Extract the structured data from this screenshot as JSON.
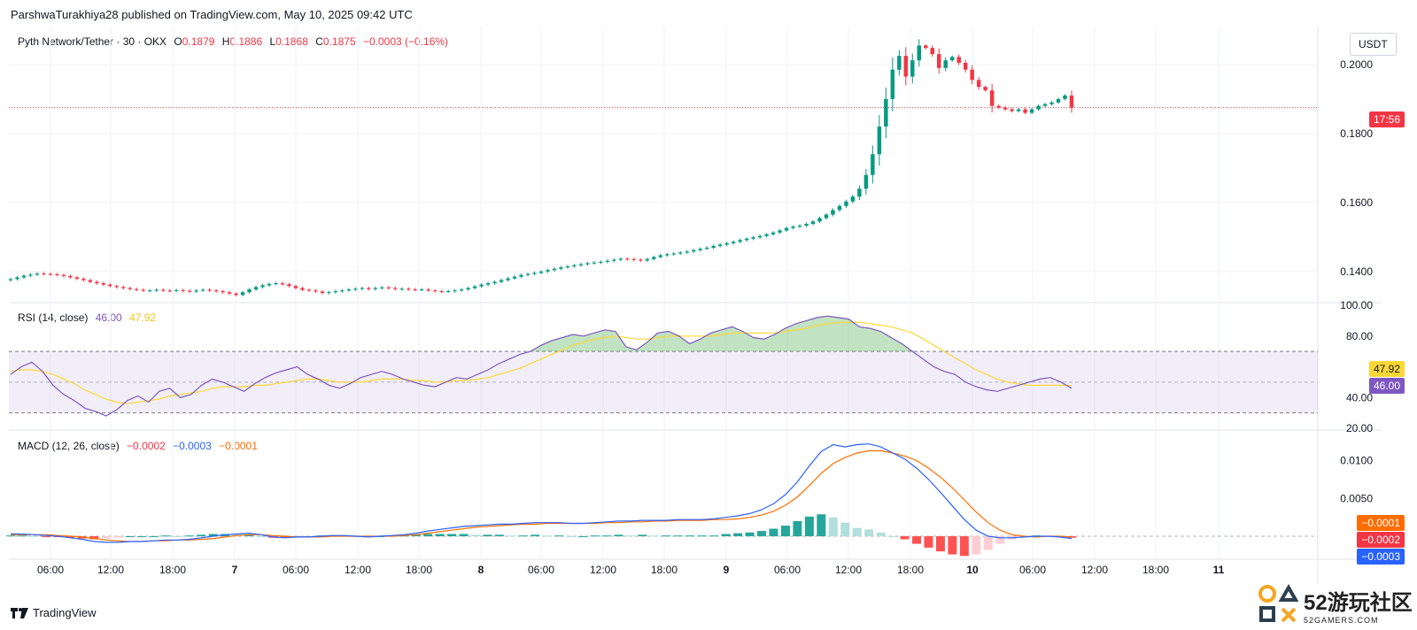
{
  "header": {
    "published_line": "ParshwaTurakhiya28 published on TradingView.com, May 10, 2025 09:42 UTC",
    "currency_button": "USDT"
  },
  "price_legend": {
    "symbol": "Pyth Network/Tether · 30 · OKX",
    "o_label": "O",
    "o_value": "0.1879",
    "h_label": "H",
    "h_value": "0.1886",
    "l_label": "L",
    "l_value": "0.1868",
    "c_label": "C",
    "c_value": "0.1875",
    "change": "−0.0003 (−0.16%)"
  },
  "rsi_legend": {
    "label": "RSI (14, close)",
    "rsi_value": "46.00",
    "ma_value": "47.92"
  },
  "macd_legend": {
    "label": "MACD (12, 26, close)",
    "hist_value": "−0.0002",
    "macd_value": "−0.0003",
    "signal_value": "−0.0001"
  },
  "badges": {
    "countdown": "17:56",
    "rsi_ma": "47.92",
    "rsi": "46.00",
    "macd_signal": "−0.0001",
    "macd_hist": "−0.0002",
    "macd_line": "−0.0003"
  },
  "footer": {
    "brand": "TradingView"
  },
  "watermark": {
    "big": "52游玩社区",
    "small": "52GAMERS.COM"
  },
  "colors": {
    "up": "#089981",
    "down": "#f23645",
    "rsi": "#7e57c2",
    "rsi_ma": "#fdd835",
    "macd": "#2962ff",
    "signal": "#ff6d00",
    "bg_band": "#7e57c2"
  },
  "chart_data": [
    {
      "type": "candlestick",
      "title": "Pyth Network/Tether · 30 · OKX",
      "y_ticks": [
        "0.2000",
        "0.1800",
        "0.1600",
        "0.1400"
      ],
      "ylim": [
        0.1315,
        0.211
      ],
      "x_ticks": [
        "06:00",
        "12:00",
        "18:00",
        "7",
        "06:00",
        "12:00",
        "18:00",
        "8",
        "06:00",
        "12:00",
        "18:00",
        "9",
        "06:00",
        "12:00",
        "18:00",
        "10",
        "06:00",
        "12:00",
        "18:00",
        "11"
      ],
      "last_price": 0.1875,
      "close_series": [
        0.1378,
        0.1383,
        0.1388,
        0.1391,
        0.1394,
        0.1393,
        0.1392,
        0.139,
        0.1387,
        0.1383,
        0.1379,
        0.1375,
        0.137,
        0.1366,
        0.1362,
        0.1358,
        0.1355,
        0.1352,
        0.1349,
        0.1347,
        0.1345,
        0.1345,
        0.1347,
        0.1345,
        0.1344,
        0.1346,
        0.1344,
        0.1342,
        0.1345,
        0.1347,
        0.1345,
        0.1343,
        0.134,
        0.1336,
        0.1332,
        0.134,
        0.1348,
        0.1355,
        0.136,
        0.1364,
        0.1366,
        0.1363,
        0.1358,
        0.1352,
        0.1347,
        0.1345,
        0.1342,
        0.1338,
        0.134,
        0.1343,
        0.1345,
        0.1348,
        0.135,
        0.1352,
        0.1349,
        0.1352,
        0.1354,
        0.1352,
        0.1349,
        0.135,
        0.1348,
        0.1347,
        0.1348,
        0.1345,
        0.1343,
        0.1342,
        0.1343,
        0.1345,
        0.1348,
        0.1352,
        0.1357,
        0.1362,
        0.1366,
        0.137,
        0.1375,
        0.138,
        0.1385,
        0.139,
        0.1393,
        0.1396,
        0.14,
        0.1404,
        0.1408,
        0.1412,
        0.1415,
        0.1418,
        0.1421,
        0.1424,
        0.1426,
        0.1428,
        0.1431,
        0.1434,
        0.1437,
        0.1436,
        0.1434,
        0.1432,
        0.1436,
        0.1442,
        0.1447,
        0.145,
        0.1452,
        0.1455,
        0.1458,
        0.1462,
        0.1466,
        0.1469,
        0.1474,
        0.1478,
        0.1482,
        0.1486,
        0.1491,
        0.1495,
        0.1499,
        0.1503,
        0.1508,
        0.1513,
        0.1519,
        0.1526,
        0.153,
        0.1533,
        0.1538,
        0.1545,
        0.1555,
        0.1565,
        0.1578,
        0.159,
        0.1603,
        0.1617,
        0.164,
        0.168,
        0.174,
        0.182,
        0.19,
        0.1985,
        0.2025,
        0.1965,
        0.2012,
        0.2055,
        0.2048,
        0.203,
        0.199,
        0.2012,
        0.2022,
        0.2005,
        0.1985,
        0.1955,
        0.1935,
        0.1925,
        0.188,
        0.1875,
        0.187,
        0.1865,
        0.187,
        0.186,
        0.187,
        0.188,
        0.1885,
        0.189,
        0.19,
        0.191,
        0.1875
      ]
    },
    {
      "type": "line",
      "title": "RSI (14, close)",
      "y_ticks": [
        "100.00",
        "80.00",
        "40.00",
        "20.00"
      ],
      "ylim": [
        20,
        100
      ],
      "bands": [
        30,
        50,
        70
      ],
      "series": [
        {
          "name": "RSI",
          "values": [
            55,
            60,
            63,
            57,
            48,
            42,
            38,
            33,
            31,
            28,
            32,
            38,
            41,
            37,
            44,
            46,
            40,
            42,
            48,
            52,
            50,
            47,
            44,
            49,
            53,
            56,
            58,
            60,
            55,
            52,
            48,
            46,
            49,
            53,
            55,
            57,
            55,
            52,
            50,
            48,
            47,
            50,
            53,
            52,
            55,
            58,
            62,
            65,
            68,
            70,
            74,
            77,
            79,
            81,
            80,
            82,
            84,
            83,
            73,
            71,
            76,
            82,
            83,
            80,
            75,
            78,
            82,
            84,
            86,
            83,
            79,
            78,
            81,
            85,
            88,
            90,
            92,
            93,
            92,
            91,
            86,
            85,
            83,
            79,
            75,
            70,
            65,
            60,
            57,
            55,
            50,
            47,
            45,
            44,
            46,
            48,
            50,
            52,
            53,
            50,
            46
          ]
        },
        {
          "name": "MA",
          "values": [
            57,
            58,
            58,
            57,
            55,
            52,
            49,
            45,
            42,
            39,
            37,
            36,
            37,
            38,
            39,
            41,
            42,
            43,
            44,
            46,
            47,
            47,
            47,
            48,
            48,
            49,
            50,
            51,
            52,
            52,
            51,
            50,
            50,
            50,
            51,
            52,
            52,
            52,
            51,
            51,
            50,
            50,
            51,
            51,
            52,
            53,
            55,
            57,
            59,
            62,
            65,
            68,
            71,
            74,
            76,
            78,
            79,
            80,
            79,
            78,
            78,
            79,
            80,
            80,
            80,
            80,
            80,
            81,
            82,
            82,
            82,
            82,
            82,
            83,
            84,
            85,
            87,
            88,
            89,
            89,
            89,
            88,
            87,
            86,
            84,
            82,
            78,
            74,
            70,
            66,
            62,
            58,
            55,
            52,
            50,
            49,
            48,
            48,
            48,
            48,
            47.92
          ]
        }
      ]
    },
    {
      "type": "line",
      "title": "MACD (12, 26, close)",
      "y_ticks": [
        "0.0100",
        "0.0050"
      ],
      "ylim": [
        -0.0028,
        0.0138
      ],
      "series": [
        {
          "name": "MACD",
          "values": [
            0.0003,
            0.0003,
            0.0002,
            0.0001,
            0,
            -0.0002,
            -0.0004,
            -0.0007,
            -0.0008,
            -0.0008,
            -0.0007,
            -0.0007,
            -0.0006,
            -0.0005,
            -0.0005,
            -0.0004,
            -0.0002,
            0,
            0.0002,
            0.0003,
            0.0004,
            0.0002,
            -0.0001,
            -0.0002,
            -0.0001,
            -0.0001,
            0,
            0.0001,
            0.0001,
            0,
            -0.0001,
            0,
            0.0001,
            0.0002,
            0.0004,
            0.0007,
            0.0009,
            0.0011,
            0.0013,
            0.0014,
            0.0015,
            0.0016,
            0.0016,
            0.0017,
            0.0018,
            0.0018,
            0.0018,
            0.0017,
            0.0017,
            0.0018,
            0.0019,
            0.002,
            0.002,
            0.0021,
            0.0021,
            0.0021,
            0.0022,
            0.0022,
            0.0022,
            0.0023,
            0.0025,
            0.0027,
            0.003,
            0.0035,
            0.0043,
            0.0055,
            0.0072,
            0.0093,
            0.0112,
            0.0121,
            0.0118,
            0.0121,
            0.0122,
            0.0118,
            0.011,
            0.0102,
            0.009,
            0.0075,
            0.0058,
            0.004,
            0.0022,
            0.0008,
            0,
            -0.0002,
            -0.0002,
            -0.0001,
            0,
            0,
            -0.0001,
            -0.0003
          ]
        },
        {
          "name": "Signal",
          "values": [
            0.0002,
            0.0002,
            0.0002,
            0.0002,
            0.0001,
            0,
            -0.0001,
            -0.0003,
            -0.0005,
            -0.0006,
            -0.0007,
            -0.0007,
            -0.0006,
            -0.0006,
            -0.0005,
            -0.0005,
            -0.0004,
            -0.0003,
            -0.0001,
            0.0001,
            0.0002,
            0.0002,
            0.0001,
            0,
            -0.0001,
            -0.0001,
            -0.0001,
            0,
            0,
            0,
            0,
            0,
            0,
            0.0001,
            0.0002,
            0.0004,
            0.0006,
            0.0008,
            0.001,
            0.0012,
            0.0013,
            0.0014,
            0.0015,
            0.0016,
            0.0016,
            0.0017,
            0.0017,
            0.0017,
            0.0017,
            0.0017,
            0.0018,
            0.0018,
            0.0019,
            0.0019,
            0.002,
            0.002,
            0.0021,
            0.0021,
            0.0021,
            0.0022,
            0.0022,
            0.0023,
            0.0025,
            0.0028,
            0.0033,
            0.0041,
            0.0052,
            0.0067,
            0.0083,
            0.0096,
            0.0104,
            0.011,
            0.0113,
            0.0113,
            0.011,
            0.0106,
            0.01,
            0.009,
            0.0078,
            0.0064,
            0.0048,
            0.0032,
            0.0018,
            0.0008,
            0.0002,
            0,
            -0.0001,
            0,
            0,
            -0.0001
          ]
        },
        {
          "name": "Histogram",
          "values": [
            0.0001,
            0.0001,
            0,
            -0.0001,
            -0.0001,
            -0.0002,
            -0.0003,
            -0.0004,
            -0.0003,
            -0.0002,
            0,
            0,
            0,
            0.0001,
            0,
            0.0001,
            0.0002,
            0.0003,
            0.0003,
            0.0002,
            0.0002,
            0,
            -0.0002,
            -0.0002,
            0,
            0,
            0.0001,
            0.0001,
            0.0001,
            0,
            -0.0001,
            0,
            0.0001,
            0.0001,
            0.0002,
            0.0003,
            0.0003,
            0.0003,
            0.0003,
            0.0002,
            0.0002,
            0.0002,
            0.0001,
            0.0001,
            0.0002,
            0.0001,
            0.0001,
            0,
            0,
            0.0001,
            0.0001,
            0.0002,
            0.0001,
            0.0002,
            0.0001,
            0.0001,
            0.0001,
            0.0001,
            0.0001,
            0.0001,
            0.0003,
            0.0004,
            0.0005,
            0.0007,
            0.001,
            0.0014,
            0.002,
            0.0026,
            0.0029,
            0.0025,
            0.0018,
            0.0011,
            0.0009,
            0.0005,
            0,
            -0.0004,
            -0.001,
            -0.0015,
            -0.002,
            -0.0024,
            -0.0026,
            -0.0024,
            -0.0018,
            -0.001,
            -0.0004,
            -0.0001,
            0.0001,
            0,
            0,
            -0.0002
          ]
        }
      ]
    }
  ]
}
